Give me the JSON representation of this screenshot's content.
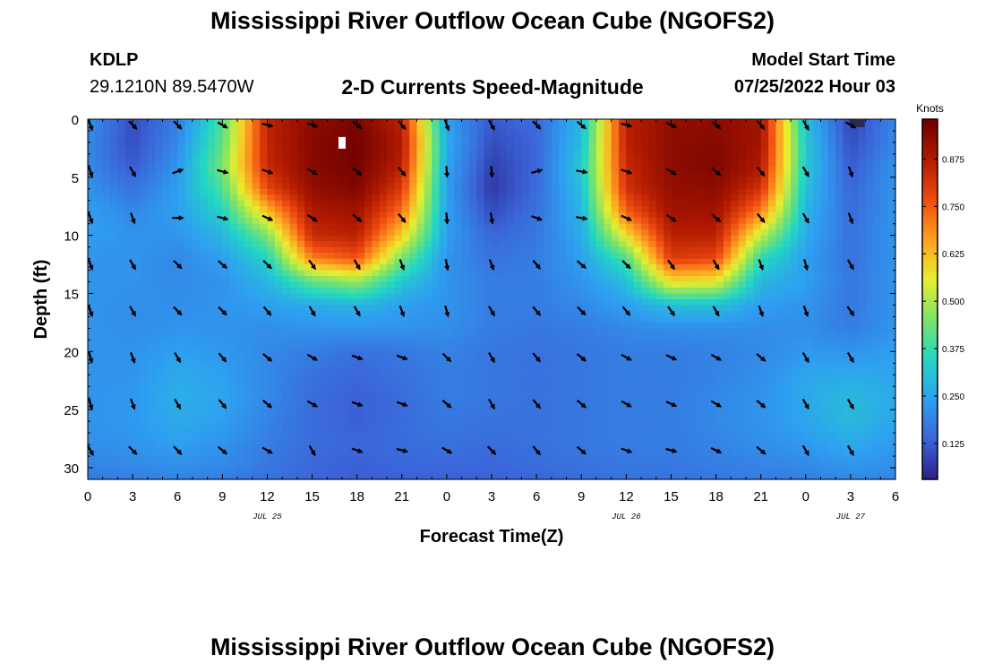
{
  "header": {
    "title": "Mississippi River Outflow Ocean Cube (NGOFS2)",
    "station_id": "KDLP",
    "station_coords": "29.1210N  89.5470W",
    "plot_title": "2-D Currents Speed-Magnitude",
    "model_start_label": "Model Start Time",
    "model_start_value": "07/25/2022 Hour 03"
  },
  "footer": {
    "title": "Mississippi River Outflow Ocean Cube (NGOFS2)"
  },
  "chart_data": {
    "type": "heatmap",
    "xlabel": "Forecast Time(Z)",
    "ylabel": "Depth (ft)",
    "x_unit": "hours since 07/25/2022 00Z",
    "xlim": [
      0,
      54
    ],
    "ylim": [
      0,
      31
    ],
    "y_inverted": true,
    "x_ticks": [
      0,
      3,
      6,
      9,
      12,
      15,
      18,
      21,
      24,
      27,
      30,
      33,
      36,
      39,
      42,
      45,
      48,
      51,
      54
    ],
    "x_tick_labels": [
      "0",
      "3",
      "6",
      "9",
      "12",
      "15",
      "18",
      "21",
      "0",
      "3",
      "6",
      "9",
      "12",
      "15",
      "18",
      "21",
      "0",
      "3",
      "6"
    ],
    "y_ticks": [
      0,
      5,
      10,
      15,
      20,
      25,
      30
    ],
    "y_tick_labels": [
      "0",
      "5",
      "10",
      "15",
      "20",
      "25",
      "30"
    ],
    "date_labels": [
      {
        "x": 12,
        "label": "JUL 25"
      },
      {
        "x": 36,
        "label": "JUL 26"
      },
      {
        "x": 51,
        "label": "JUL 27"
      }
    ],
    "colorbar": {
      "title": "Knots",
      "min": 0.03,
      "max": 0.98,
      "ticks": [
        0.125,
        0.25,
        0.375,
        0.5,
        0.625,
        0.75,
        0.875
      ],
      "tick_labels": [
        "0.125",
        "0.250",
        "0.375",
        "0.500",
        "0.625",
        "0.750",
        "0.875"
      ],
      "colors": [
        "#2a1f86",
        "#3b64d8",
        "#2ea0f0",
        "#22d6c4",
        "#7de36a",
        "#e8ee2e",
        "#ffa020",
        "#ee4a10",
        "#b01a00",
        "#6e0000"
      ]
    },
    "speed_grid": {
      "depths": [
        0,
        2,
        4,
        6,
        8,
        10,
        12,
        14,
        16,
        18,
        20,
        22,
        24,
        26,
        28,
        30,
        31
      ],
      "hours": [
        0,
        3,
        6,
        9,
        12,
        15,
        18,
        21,
        24,
        27,
        30,
        33,
        36,
        39,
        42,
        45,
        48,
        51,
        54
      ],
      "values": [
        [
          0.22,
          0.1,
          0.18,
          0.4,
          0.85,
          0.93,
          0.96,
          0.85,
          0.24,
          0.12,
          0.15,
          0.28,
          0.86,
          0.92,
          0.93,
          0.9,
          0.3,
          0.08,
          0.2
        ],
        [
          0.2,
          0.1,
          0.2,
          0.42,
          0.85,
          0.94,
          0.97,
          0.88,
          0.26,
          0.1,
          0.14,
          0.3,
          0.86,
          0.93,
          0.94,
          0.9,
          0.32,
          0.1,
          0.2
        ],
        [
          0.2,
          0.12,
          0.22,
          0.45,
          0.84,
          0.94,
          0.97,
          0.86,
          0.25,
          0.08,
          0.14,
          0.32,
          0.84,
          0.93,
          0.95,
          0.88,
          0.32,
          0.12,
          0.22
        ],
        [
          0.22,
          0.16,
          0.24,
          0.4,
          0.78,
          0.92,
          0.95,
          0.8,
          0.24,
          0.07,
          0.15,
          0.3,
          0.82,
          0.92,
          0.93,
          0.82,
          0.3,
          0.14,
          0.22
        ],
        [
          0.24,
          0.2,
          0.24,
          0.34,
          0.62,
          0.88,
          0.9,
          0.72,
          0.24,
          0.1,
          0.16,
          0.28,
          0.74,
          0.9,
          0.9,
          0.7,
          0.28,
          0.15,
          0.22
        ],
        [
          0.24,
          0.22,
          0.22,
          0.28,
          0.45,
          0.84,
          0.86,
          0.6,
          0.24,
          0.14,
          0.17,
          0.26,
          0.58,
          0.86,
          0.86,
          0.52,
          0.26,
          0.16,
          0.22
        ],
        [
          0.22,
          0.22,
          0.2,
          0.24,
          0.34,
          0.7,
          0.76,
          0.44,
          0.22,
          0.16,
          0.18,
          0.24,
          0.4,
          0.8,
          0.78,
          0.36,
          0.24,
          0.16,
          0.22
        ],
        [
          0.22,
          0.22,
          0.2,
          0.22,
          0.28,
          0.42,
          0.48,
          0.32,
          0.22,
          0.18,
          0.18,
          0.22,
          0.3,
          0.58,
          0.56,
          0.28,
          0.24,
          0.17,
          0.22
        ],
        [
          0.22,
          0.21,
          0.21,
          0.22,
          0.24,
          0.26,
          0.28,
          0.24,
          0.22,
          0.18,
          0.18,
          0.2,
          0.24,
          0.3,
          0.3,
          0.24,
          0.22,
          0.17,
          0.22
        ],
        [
          0.22,
          0.21,
          0.22,
          0.22,
          0.21,
          0.22,
          0.22,
          0.22,
          0.21,
          0.18,
          0.17,
          0.18,
          0.2,
          0.21,
          0.21,
          0.21,
          0.21,
          0.18,
          0.22
        ],
        [
          0.22,
          0.22,
          0.24,
          0.23,
          0.2,
          0.18,
          0.16,
          0.17,
          0.19,
          0.17,
          0.16,
          0.17,
          0.18,
          0.18,
          0.19,
          0.2,
          0.23,
          0.22,
          0.24
        ],
        [
          0.22,
          0.22,
          0.26,
          0.24,
          0.2,
          0.16,
          0.14,
          0.16,
          0.18,
          0.17,
          0.16,
          0.17,
          0.18,
          0.18,
          0.19,
          0.21,
          0.25,
          0.26,
          0.25
        ],
        [
          0.22,
          0.23,
          0.27,
          0.25,
          0.2,
          0.15,
          0.13,
          0.15,
          0.18,
          0.17,
          0.16,
          0.17,
          0.18,
          0.18,
          0.2,
          0.22,
          0.26,
          0.29,
          0.26
        ],
        [
          0.22,
          0.23,
          0.26,
          0.24,
          0.19,
          0.15,
          0.13,
          0.15,
          0.17,
          0.16,
          0.16,
          0.17,
          0.18,
          0.18,
          0.2,
          0.22,
          0.25,
          0.29,
          0.25
        ],
        [
          0.21,
          0.22,
          0.24,
          0.22,
          0.18,
          0.15,
          0.14,
          0.15,
          0.16,
          0.15,
          0.16,
          0.17,
          0.18,
          0.18,
          0.19,
          0.21,
          0.23,
          0.26,
          0.23
        ],
        [
          0.19,
          0.2,
          0.21,
          0.2,
          0.17,
          0.14,
          0.13,
          0.14,
          0.14,
          0.14,
          0.15,
          0.16,
          0.17,
          0.17,
          0.18,
          0.19,
          0.2,
          0.22,
          0.21
        ],
        [
          0.17,
          0.18,
          0.19,
          0.18,
          0.16,
          0.14,
          0.13,
          0.13,
          0.13,
          0.13,
          0.14,
          0.15,
          0.16,
          0.16,
          0.17,
          0.18,
          0.18,
          0.2,
          0.19
        ]
      ]
    },
    "vectors": {
      "depths": [
        0.5,
        4.5,
        8.5,
        12.5,
        16.5,
        20.5,
        24.5,
        28.5
      ],
      "hours": [
        0,
        3,
        6,
        9,
        12,
        15,
        18,
        21,
        24,
        27,
        30,
        33,
        36,
        39,
        42,
        45,
        48,
        51
      ],
      "angle_deg": [
        [
          70,
          45,
          45,
          30,
          15,
          20,
          40,
          50,
          70,
          60,
          45,
          40,
          15,
          25,
          40,
          50,
          60,
          30
        ],
        [
          70,
          60,
          -20,
          15,
          20,
          30,
          40,
          50,
          85,
          85,
          -15,
          10,
          20,
          30,
          40,
          50,
          60,
          70
        ],
        [
          70,
          70,
          0,
          15,
          25,
          35,
          40,
          50,
          85,
          80,
          20,
          10,
          25,
          35,
          40,
          50,
          60,
          70
        ],
        [
          70,
          60,
          45,
          40,
          45,
          55,
          60,
          70,
          80,
          70,
          50,
          40,
          45,
          55,
          60,
          70,
          75,
          60
        ],
        [
          70,
          60,
          45,
          45,
          50,
          60,
          60,
          70,
          75,
          60,
          50,
          45,
          50,
          55,
          60,
          70,
          70,
          55
        ],
        [
          75,
          70,
          60,
          50,
          40,
          30,
          20,
          20,
          45,
          60,
          50,
          40,
          30,
          25,
          30,
          40,
          60,
          60
        ],
        [
          75,
          70,
          60,
          50,
          40,
          30,
          20,
          20,
          40,
          60,
          50,
          40,
          30,
          25,
          30,
          40,
          60,
          60
        ],
        [
          60,
          45,
          45,
          40,
          30,
          60,
          20,
          15,
          30,
          45,
          50,
          40,
          20,
          15,
          25,
          40,
          60,
          60
        ]
      ]
    },
    "missing_cells": [
      {
        "hour": 17.0,
        "depth": 2.0
      },
      {
        "hour": 51.3,
        "depth": 0.3
      },
      {
        "hour": 51.7,
        "depth": 0.3
      }
    ]
  }
}
